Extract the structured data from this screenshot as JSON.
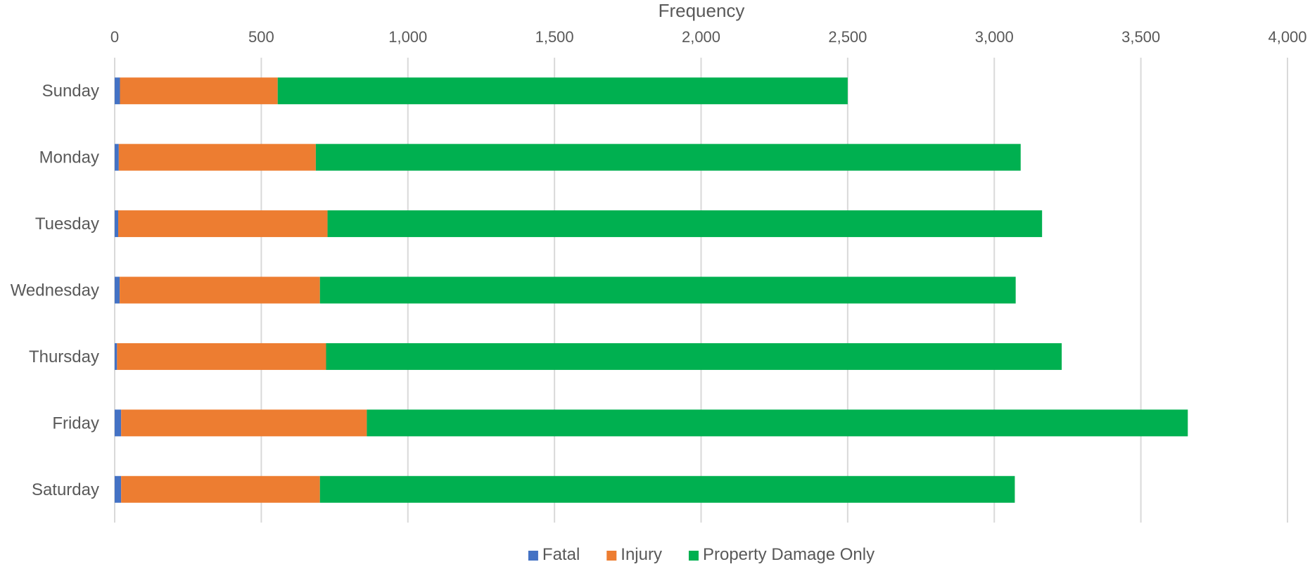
{
  "chart_data": {
    "type": "bar",
    "orientation": "horizontal",
    "stacked": true,
    "title": "",
    "xlabel": "Frequency",
    "ylabel": "",
    "xlim": [
      0,
      4000
    ],
    "x_ticks": [
      0,
      500,
      1000,
      1500,
      2000,
      2500,
      3000,
      3500,
      4000
    ],
    "x_tick_labels": [
      "0",
      "500",
      "1,000",
      "1,500",
      "2,000",
      "2,500",
      "3,000",
      "3,500",
      "4,000"
    ],
    "x_axis_position": "top",
    "grid": true,
    "legend_position": "bottom",
    "categories": [
      "Sunday",
      "Monday",
      "Tuesday",
      "Wednesday",
      "Thursday",
      "Friday",
      "Saturday"
    ],
    "series": [
      {
        "name": "Fatal",
        "color": "#4472C4",
        "values": [
          18,
          14,
          12,
          17,
          8,
          22,
          22
        ]
      },
      {
        "name": "Injury",
        "color": "#ED7D31",
        "values": [
          538,
          672,
          714,
          683,
          713,
          838,
          678
        ]
      },
      {
        "name": "Property Damage Only",
        "color": "#00B050",
        "values": [
          1944,
          2404,
          2437,
          2373,
          2509,
          2800,
          2370
        ]
      }
    ]
  }
}
